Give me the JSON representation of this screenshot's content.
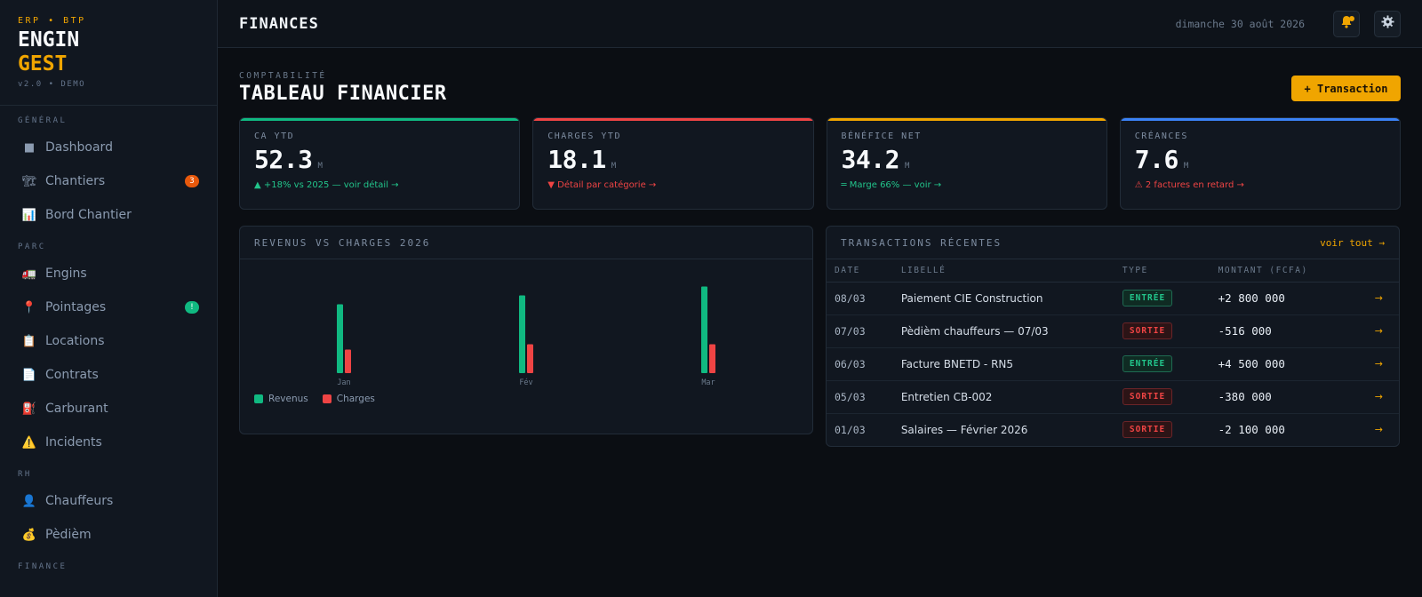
{
  "brand": {
    "tag": "ERP • BTP",
    "line1": "ENGIN",
    "line2": "GEST",
    "version": "v2.0 • DEMO"
  },
  "sidebar": {
    "sections": [
      {
        "title": "GÉNÉRAL",
        "items": [
          {
            "label": "Dashboard",
            "icon": "■"
          },
          {
            "label": "Chantiers",
            "icon": "🏗",
            "badge": "3"
          },
          {
            "label": "Bord Chantier",
            "icon": "📊"
          }
        ]
      },
      {
        "title": "PARC",
        "items": [
          {
            "label": "Engins",
            "icon": "🚛"
          },
          {
            "label": "Pointages",
            "icon": "📍",
            "badge": "!"
          },
          {
            "label": "Locations",
            "icon": "📋"
          },
          {
            "label": "Contrats",
            "icon": "📄"
          },
          {
            "label": "Carburant",
            "icon": "⛽"
          },
          {
            "label": "Incidents",
            "icon": "⚠️"
          }
        ]
      },
      {
        "title": "RH",
        "items": [
          {
            "label": "Chauffeurs",
            "icon": "👤"
          },
          {
            "label": "Pèdièm",
            "icon": "💰"
          }
        ]
      },
      {
        "title": "FINANCE",
        "items": []
      }
    ]
  },
  "topbar": {
    "title": "FINANCES",
    "date": "dimanche 30 août 2026",
    "bell_icon": "bell-icon",
    "settings_icon": "gear-icon"
  },
  "page": {
    "crumb": "COMPTABILITÉ",
    "title": "TABLEAU FINANCIER",
    "action_label": "+ Transaction"
  },
  "kpis": [
    {
      "label": "CA YTD",
      "value": "52.3",
      "unit": "M",
      "foot": "▲ +18% vs 2025 — voir détail →",
      "color": "#10b981",
      "foot_color": "#22c58b"
    },
    {
      "label": "CHARGES YTD",
      "value": "18.1",
      "unit": "M",
      "foot": "▼ Détail par catégorie →",
      "color": "#ef4444",
      "foot_color": "#ef4444"
    },
    {
      "label": "BÉNÉFICE NET",
      "value": "34.2",
      "unit": "M",
      "foot": "═ Marge 66% — voir →",
      "color": "#f0a500",
      "foot_color": "#22c58b"
    },
    {
      "label": "CRÉANCES",
      "value": "7.6",
      "unit": "M",
      "foot": "⚠ 2 factures en retard →",
      "color": "#3b82f6",
      "foot_color": "#ef4444"
    }
  ],
  "chart_panel": {
    "title": "REVENUS VS CHARGES 2026"
  },
  "chart_data": {
    "type": "bar",
    "categories": [
      "Jan",
      "Fév",
      "Mar"
    ],
    "series": [
      {
        "name": "Revenus",
        "values": [
          15.5,
          17.5,
          19.5
        ],
        "color": "#10b981"
      },
      {
        "name": "Charges",
        "values": [
          5.3,
          6.5,
          6.5
        ],
        "color": "#ef4444"
      }
    ],
    "legend": "bottom-left",
    "grid": false
  },
  "transactions": {
    "title": "TRANSACTIONS RÉCENTES",
    "link": "voir tout →",
    "columns": [
      "DATE",
      "LIBELLÉ",
      "TYPE",
      "MONTANT (FCFA)"
    ],
    "rows": [
      {
        "date": "08/03",
        "label": "Paiement CIE Construction",
        "type": "ENTRÉE",
        "kind": "in",
        "amount": "+2 800 000",
        "arrow": "→"
      },
      {
        "date": "07/03",
        "label": "Pèdièm chauffeurs — 07/03",
        "type": "SORTIE",
        "kind": "out",
        "amount": "-516 000",
        "arrow": "→"
      },
      {
        "date": "06/03",
        "label": "Facture BNETD - RN5",
        "type": "ENTRÉE",
        "kind": "in",
        "amount": "+4 500 000",
        "arrow": "→"
      },
      {
        "date": "05/03",
        "label": "Entretien CB-002",
        "type": "SORTIE",
        "kind": "out",
        "amount": "-380 000",
        "arrow": "→"
      },
      {
        "date": "01/03",
        "label": "Salaires — Février 2026",
        "type": "SORTIE",
        "kind": "out",
        "amount": "-2 100 000",
        "arrow": "→"
      }
    ]
  }
}
